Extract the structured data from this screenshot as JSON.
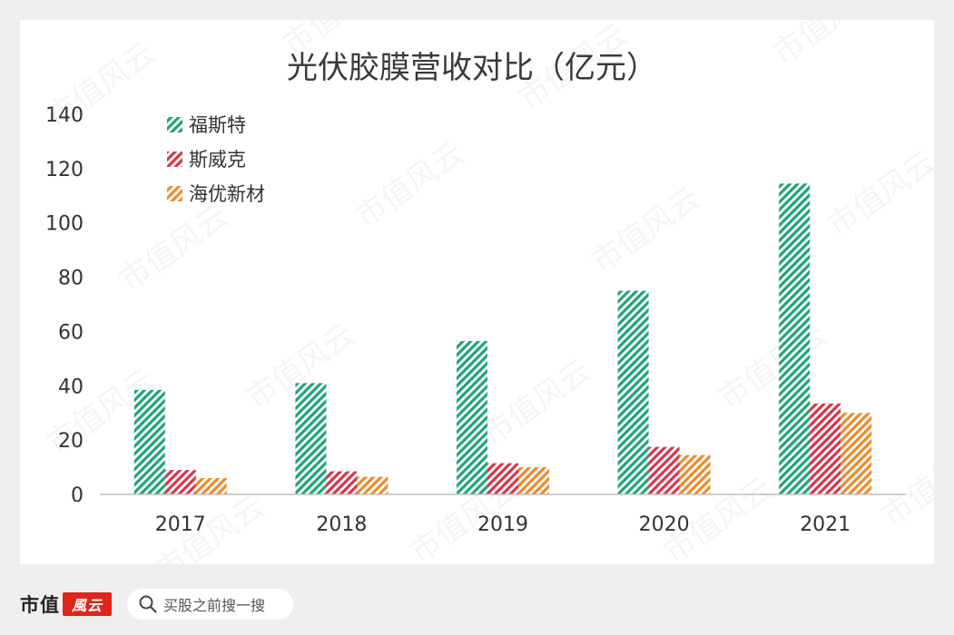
{
  "chart_data": {
    "type": "bar",
    "title": "光伏胶膜营收对比（亿元）",
    "categories": [
      "2017",
      "2018",
      "2019",
      "2020",
      "2021"
    ],
    "series": [
      {
        "name": "福斯特",
        "values": [
          38.5,
          41,
          56.5,
          75,
          114.5
        ]
      },
      {
        "name": "斯威克",
        "values": [
          9,
          8.5,
          11.5,
          17.5,
          33.5
        ]
      },
      {
        "name": "海优新材",
        "values": [
          6,
          6.5,
          10,
          14.5,
          30
        ]
      }
    ],
    "ylim": [
      0,
      140
    ],
    "yticks": [
      0,
      20,
      40,
      60,
      80,
      100,
      120,
      140
    ],
    "xlabel": "",
    "ylabel": "",
    "grid": false,
    "legend": "top-left",
    "colors": [
      "#1fa57a",
      "#d9344d",
      "#ee8a2a"
    ]
  },
  "watermark": "市值风云",
  "footer": {
    "brand": "市值",
    "search_placeholder": "买股之前搜一搜"
  }
}
